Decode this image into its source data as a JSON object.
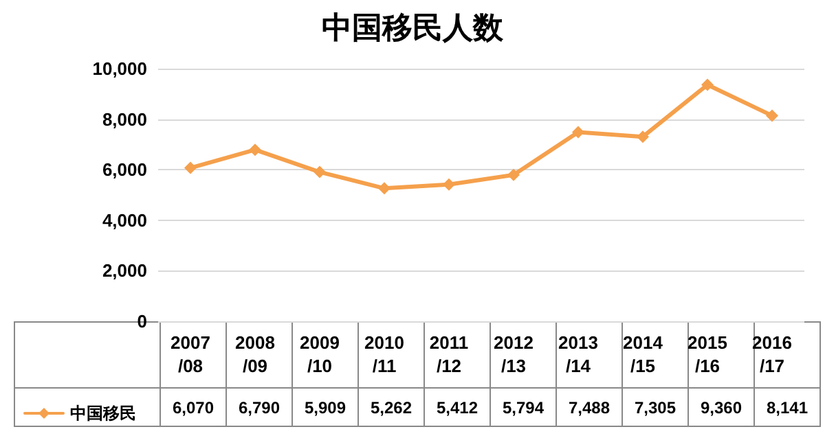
{
  "chart_data": {
    "type": "line",
    "title": "中国移民人数",
    "categories": [
      "2007/08",
      "2008/09",
      "2009/10",
      "2010/11",
      "2011/12",
      "2012/13",
      "2013/14",
      "2014/15",
      "2015/16",
      "2016/17"
    ],
    "series": [
      {
        "name": "中国移民",
        "color": "#f5a04c",
        "values": [
          6070,
          6790,
          5909,
          5262,
          5412,
          5794,
          7488,
          7305,
          9360,
          8141
        ],
        "value_labels": [
          "6,070",
          "6,790",
          "5,909",
          "5,262",
          "5,412",
          "5,794",
          "7,488",
          "7,305",
          "9,360",
          "8,141"
        ]
      }
    ],
    "ylim": [
      0,
      10000
    ],
    "yticks": [
      0,
      {
        "value": 2000,
        "label": "2,000"
      },
      {
        "value": 4000,
        "label": "4,000"
      },
      {
        "value": 6000,
        "label": "6,000"
      },
      {
        "value": 8000,
        "label": "8,000"
      },
      {
        "value": 10000,
        "label": "10,000"
      }
    ],
    "grid": "y",
    "legend": "bottom left",
    "marker": "diamond",
    "line_style": "solid"
  }
}
